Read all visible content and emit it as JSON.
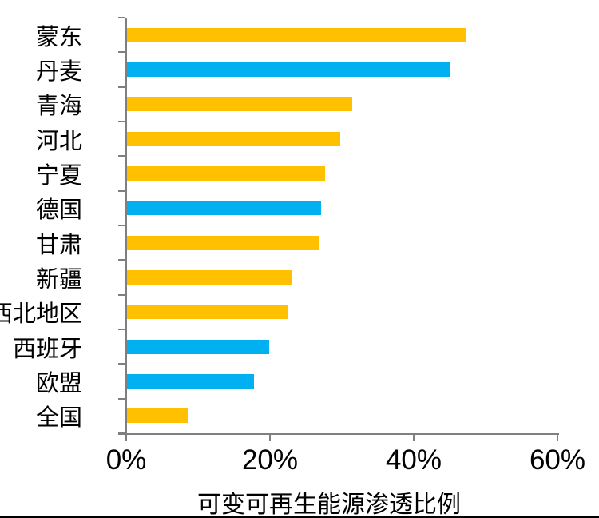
{
  "chart_data": {
    "type": "bar",
    "orientation": "horizontal",
    "title": "",
    "xlabel": "可变可再生能源渗透比例",
    "ylabel": "",
    "xlim": [
      0,
      60
    ],
    "x_tick_labels": [
      "0%",
      "20%",
      "40%",
      "60%"
    ],
    "x_tick_values": [
      0,
      20,
      40,
      60
    ],
    "grid": false,
    "legend": "none",
    "categories": [
      "蒙东",
      "丹麦",
      "青海",
      "河北",
      "宁夏",
      "德国",
      "甘肃",
      "新疆",
      "西北地区",
      "西班牙",
      "欧盟",
      "全国"
    ],
    "values": [
      47.2,
      45.0,
      31.4,
      29.8,
      27.7,
      27.1,
      26.9,
      23.1,
      22.5,
      19.9,
      17.8,
      8.7
    ],
    "unit": "%",
    "bar_colors": [
      "#FFC000",
      "#00B0F0",
      "#FFC000",
      "#FFC000",
      "#FFC000",
      "#00B0F0",
      "#FFC000",
      "#FFC000",
      "#FFC000",
      "#00B0F0",
      "#00B0F0",
      "#FFC000"
    ],
    "palette": {
      "yellow": "#FFC000",
      "blue": "#00B0F0",
      "axis": "#7F7F7F",
      "text": "#000000"
    }
  }
}
